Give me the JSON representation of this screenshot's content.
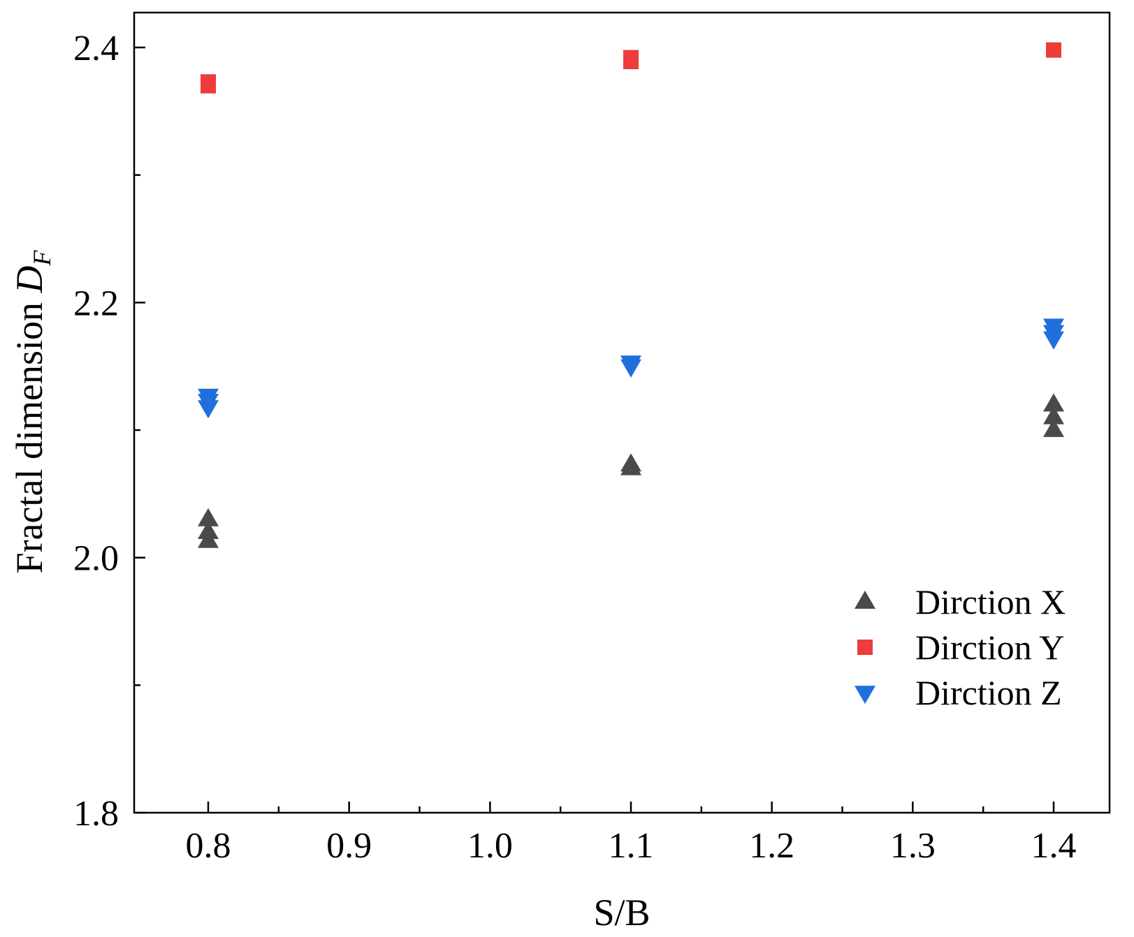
{
  "chart_data": {
    "type": "scatter",
    "title": "",
    "xlabel": "S/B",
    "ylabel_main": "Fractal dimension ",
    "ylabel_var": "D",
    "ylabel_sub": "F",
    "xlim": [
      0.75,
      1.45
    ],
    "ylim": [
      1.8,
      2.43
    ],
    "x_major_ticks": [
      0.8,
      0.9,
      1.0,
      1.1,
      1.2,
      1.3,
      1.4
    ],
    "x_tick_labels": [
      "0.8",
      "0.9",
      "1.0",
      "1.1",
      "1.2",
      "1.3",
      "1.4"
    ],
    "x_minor_ticks": [
      0.85,
      0.95,
      1.05,
      1.15,
      1.25,
      1.35
    ],
    "y_major_ticks": [
      1.8,
      2.0,
      2.2,
      2.4
    ],
    "y_tick_labels": [
      "1.8",
      "2.0",
      "2.2",
      "2.4"
    ],
    "y_minor_ticks": [
      1.9,
      2.1,
      2.3
    ],
    "grid": false,
    "legend_position": "bottom-right",
    "series": [
      {
        "name": "Dirction X",
        "marker": "triangle-up",
        "color": "#4a4a4a",
        "points": [
          {
            "x": 0.8,
            "y": 2.03
          },
          {
            "x": 0.8,
            "y": 2.02
          },
          {
            "x": 0.8,
            "y": 2.013
          },
          {
            "x": 1.1,
            "y": 2.073
          },
          {
            "x": 1.1,
            "y": 2.07
          },
          {
            "x": 1.4,
            "y": 2.12
          },
          {
            "x": 1.4,
            "y": 2.11
          },
          {
            "x": 1.4,
            "y": 2.1
          }
        ]
      },
      {
        "name": "Dirction Y",
        "marker": "square",
        "color": "#ee3b3b",
        "points": [
          {
            "x": 0.8,
            "y": 2.373
          },
          {
            "x": 0.8,
            "y": 2.37
          },
          {
            "x": 1.1,
            "y": 2.392
          },
          {
            "x": 1.1,
            "y": 2.389
          },
          {
            "x": 1.4,
            "y": 2.398
          }
        ]
      },
      {
        "name": "Dirction Z",
        "marker": "triangle-down",
        "color": "#1f6fdc",
        "points": [
          {
            "x": 0.8,
            "y": 2.127
          },
          {
            "x": 0.8,
            "y": 2.123
          },
          {
            "x": 0.8,
            "y": 2.118
          },
          {
            "x": 1.1,
            "y": 2.153
          },
          {
            "x": 1.1,
            "y": 2.15
          },
          {
            "x": 1.4,
            "y": 2.182
          },
          {
            "x": 1.4,
            "y": 2.177
          },
          {
            "x": 1.4,
            "y": 2.172
          }
        ]
      }
    ]
  }
}
